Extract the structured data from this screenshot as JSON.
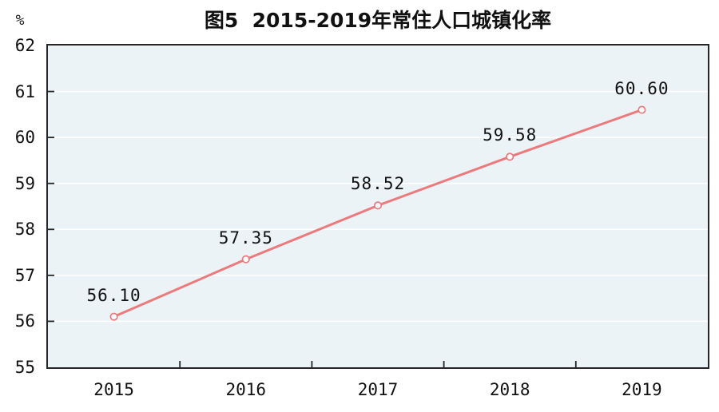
{
  "chart_data": {
    "type": "line",
    "title": "图5  2015-2019年常住人口城镇化率",
    "unit_label": "%",
    "categories": [
      "2015",
      "2016",
      "2017",
      "2018",
      "2019"
    ],
    "series": [
      {
        "name": "常住人口城镇化率",
        "values": [
          56.1,
          57.35,
          58.52,
          59.58,
          60.6
        ]
      }
    ],
    "value_decimals": 2,
    "ylim": [
      55,
      62
    ],
    "yticks": [
      55,
      56,
      57,
      58,
      59,
      60,
      61,
      62
    ],
    "grid": "horizontal",
    "legend": "none",
    "colors": {
      "line": "#ec7a7c",
      "marker_fill": "#ffffff",
      "plot_bg": "#ebf3f6",
      "axis": "#262626",
      "gridline": "#ffffff",
      "text": "#111111",
      "page_bg": "#ffffff"
    }
  }
}
